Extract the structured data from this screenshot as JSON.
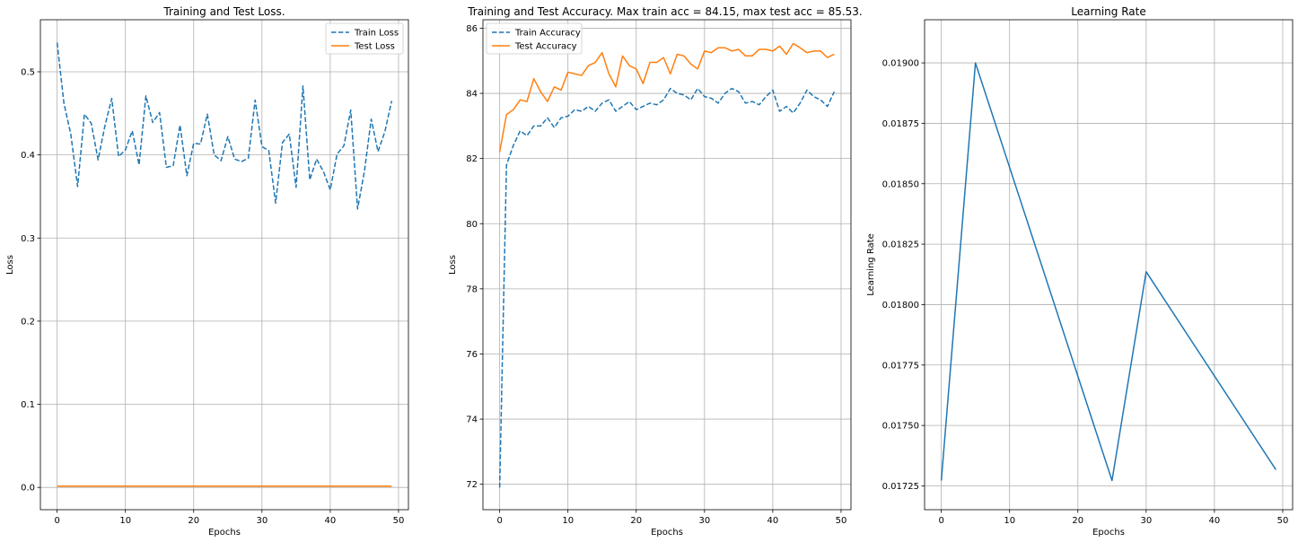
{
  "chart_data": [
    {
      "type": "line",
      "title": "Training and Test Loss.",
      "xlabel": "Epochs",
      "ylabel": "Loss",
      "xlim": [
        -2.45,
        51.45
      ],
      "ylim": [
        -0.0268,
        0.5626
      ],
      "xticks": [
        0,
        10,
        20,
        30,
        40,
        50
      ],
      "yticks": [
        0.0,
        0.1,
        0.2,
        0.3,
        0.4,
        0.5
      ],
      "ytick_decimals": 1,
      "grid": true,
      "legend": "top-right",
      "x": [
        0,
        1,
        2,
        3,
        4,
        5,
        6,
        7,
        8,
        9,
        10,
        11,
        12,
        13,
        14,
        15,
        16,
        17,
        18,
        19,
        20,
        21,
        22,
        23,
        24,
        25,
        26,
        27,
        28,
        29,
        30,
        31,
        32,
        33,
        34,
        35,
        36,
        37,
        38,
        39,
        40,
        41,
        42,
        43,
        44,
        45,
        46,
        47,
        48,
        49
      ],
      "series": [
        {
          "name": "Train Loss",
          "style": "dashed",
          "color": "#1f77b4",
          "values": [
            0.535,
            0.462,
            0.425,
            0.362,
            0.449,
            0.438,
            0.394,
            0.435,
            0.468,
            0.398,
            0.406,
            0.429,
            0.388,
            0.471,
            0.439,
            0.451,
            0.385,
            0.387,
            0.436,
            0.375,
            0.414,
            0.413,
            0.449,
            0.4,
            0.393,
            0.422,
            0.395,
            0.392,
            0.396,
            0.466,
            0.41,
            0.405,
            0.342,
            0.415,
            0.425,
            0.361,
            0.483,
            0.37,
            0.395,
            0.38,
            0.358,
            0.401,
            0.411,
            0.454,
            0.335,
            0.38,
            0.443,
            0.404,
            0.428,
            0.465
          ]
        },
        {
          "name": "Test Loss",
          "style": "solid",
          "color": "#ff7f0e",
          "values": [
            0.0016,
            0.0016,
            0.0016,
            0.0016,
            0.0016,
            0.0016,
            0.0016,
            0.0016,
            0.0016,
            0.0016,
            0.0015,
            0.0015,
            0.0015,
            0.0015,
            0.0015,
            0.0015,
            0.0015,
            0.0015,
            0.0015,
            0.0015,
            0.0015,
            0.0015,
            0.0015,
            0.0015,
            0.0015,
            0.0015,
            0.0015,
            0.0015,
            0.0015,
            0.0015,
            0.0015,
            0.0015,
            0.0015,
            0.0015,
            0.0015,
            0.0015,
            0.0015,
            0.0015,
            0.0015,
            0.0015,
            0.0015,
            0.0015,
            0.0015,
            0.0015,
            0.0015,
            0.0015,
            0.0015,
            0.0015,
            0.0015,
            0.0015
          ]
        }
      ]
    },
    {
      "type": "line",
      "title": "Training and Test Accuracy. Max train acc = 84.15, max test acc = 85.53.",
      "xlabel": "Epochs",
      "ylabel": "Loss",
      "xlim": [
        -2.45,
        51.45
      ],
      "ylim": [
        71.22,
        86.26
      ],
      "xticks": [
        0,
        10,
        20,
        30,
        40,
        50
      ],
      "yticks": [
        72,
        74,
        76,
        78,
        80,
        82,
        84,
        86
      ],
      "ytick_decimals": 0,
      "grid": true,
      "legend": "top-left",
      "x": [
        0,
        1,
        2,
        3,
        4,
        5,
        6,
        7,
        8,
        9,
        10,
        11,
        12,
        13,
        14,
        15,
        16,
        17,
        18,
        19,
        20,
        21,
        22,
        23,
        24,
        25,
        26,
        27,
        28,
        29,
        30,
        31,
        32,
        33,
        34,
        35,
        36,
        37,
        38,
        39,
        40,
        41,
        42,
        43,
        44,
        45,
        46,
        47,
        48,
        49
      ],
      "series": [
        {
          "name": "Train Accuracy",
          "style": "dashed",
          "color": "#1f77b4",
          "values": [
            71.9,
            81.8,
            82.4,
            82.85,
            82.7,
            83.0,
            83.0,
            83.25,
            82.95,
            83.25,
            83.3,
            83.5,
            83.45,
            83.6,
            83.45,
            83.7,
            83.8,
            83.45,
            83.6,
            83.75,
            83.5,
            83.6,
            83.7,
            83.65,
            83.8,
            84.15,
            84.0,
            83.95,
            83.8,
            84.15,
            83.9,
            83.85,
            83.7,
            84.0,
            84.15,
            84.05,
            83.7,
            83.75,
            83.65,
            83.9,
            84.1,
            83.45,
            83.6,
            83.4,
            83.7,
            84.1,
            83.9,
            83.8,
            83.6,
            84.05
          ]
        },
        {
          "name": "Test Accuracy",
          "style": "solid",
          "color": "#ff7f0e",
          "values": [
            82.2,
            83.35,
            83.5,
            83.8,
            83.75,
            84.45,
            84.05,
            83.75,
            84.2,
            84.1,
            84.65,
            84.6,
            84.55,
            84.85,
            84.95,
            85.25,
            84.6,
            84.2,
            85.15,
            84.85,
            84.75,
            84.3,
            84.95,
            84.95,
            85.1,
            84.6,
            85.2,
            85.15,
            84.9,
            84.75,
            85.3,
            85.25,
            85.4,
            85.4,
            85.3,
            85.35,
            85.15,
            85.15,
            85.35,
            85.35,
            85.3,
            85.45,
            85.2,
            85.53,
            85.4,
            85.25,
            85.3,
            85.3,
            85.1,
            85.2
          ]
        }
      ]
    },
    {
      "type": "line",
      "title": "Learning Rate",
      "xlabel": "Epochs",
      "ylabel": "Learning Rate",
      "xlim": [
        -2.45,
        51.45
      ],
      "ylim": [
        0.0171515,
        0.0191785
      ],
      "xticks": [
        0,
        10,
        20,
        30,
        40,
        50
      ],
      "yticks": [
        0.01725,
        0.0175,
        0.01775,
        0.018,
        0.01825,
        0.0185,
        0.01875,
        0.019
      ],
      "ytick_decimals": 5,
      "grid": true,
      "legend": "none",
      "x": [
        0,
        5,
        25,
        30,
        49
      ],
      "series": [
        {
          "style": "solid",
          "color": "#1f77b4",
          "values": [
            0.017272,
            0.019,
            0.017272,
            0.018136,
            0.017317
          ]
        }
      ]
    }
  ]
}
